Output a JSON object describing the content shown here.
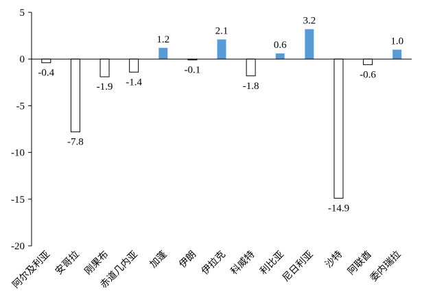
{
  "chart_data": {
    "type": "bar",
    "categories": [
      "阿尔及利亚",
      "安哥拉",
      "刚果布",
      "赤道几内亚",
      "加蓬",
      "伊朗",
      "伊拉克",
      "科威特",
      "利比亚",
      "尼日利亚",
      "沙特",
      "阿联酋",
      "委内瑞拉"
    ],
    "values": [
      -0.4,
      -7.8,
      -1.9,
      -1.4,
      1.2,
      -0.1,
      2.1,
      -1.8,
      0.6,
      3.2,
      -14.9,
      -0.6,
      1.0
    ],
    "data_labels": [
      "-0.4",
      "-7.8",
      "-1.9",
      "-1.4",
      "1.2",
      "-0.1",
      "2.1",
      "-1.8",
      "0.6",
      "3.2",
      "-14.9",
      "-0.6",
      "1.0"
    ],
    "ylim": [
      -20,
      5
    ],
    "y_ticks": [
      5,
      0,
      -5,
      -10,
      -15,
      -20
    ],
    "y_tick_labels": [
      "5",
      "0",
      "-5",
      "-10",
      "-15",
      "-20"
    ],
    "grid": false,
    "legend": "none",
    "colors": {
      "positive_fill": "#5B9BD5",
      "negative_fill": "#FFFFFF",
      "negative_stroke": "#000000",
      "axis": "#000000"
    },
    "title": "",
    "xlabel": "",
    "ylabel": ""
  }
}
